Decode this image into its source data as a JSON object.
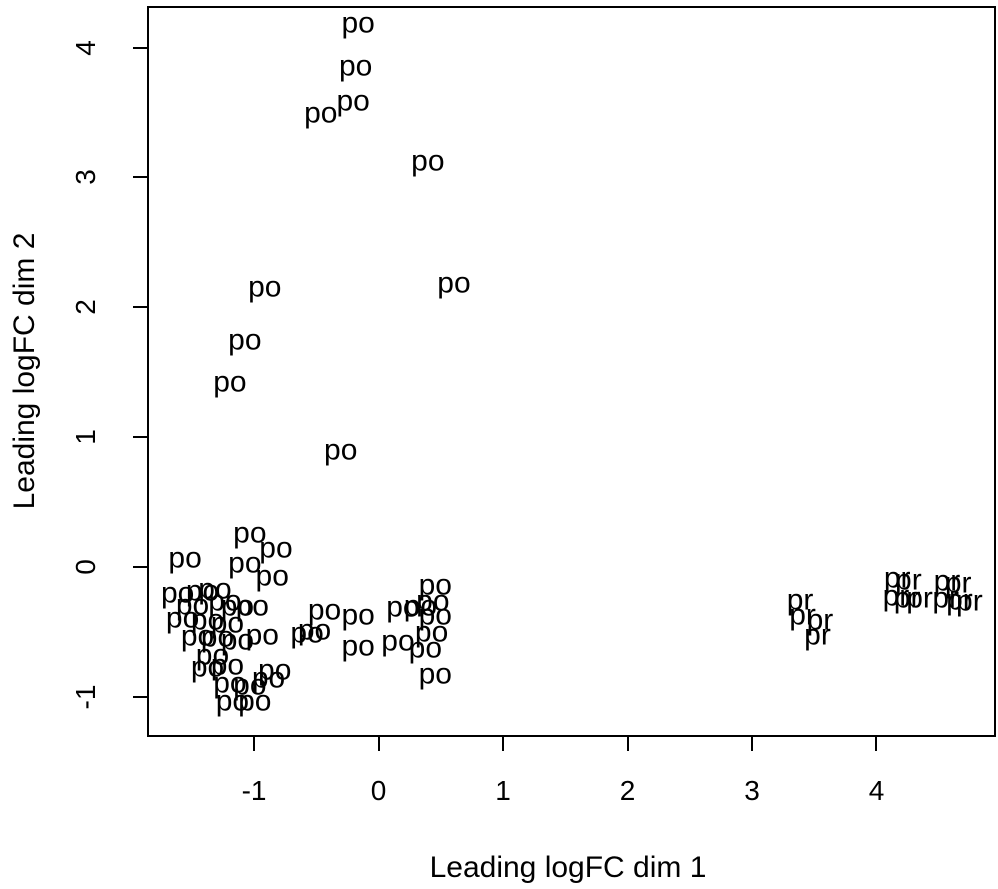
{
  "figure": {
    "background_color": "#ffffff",
    "foreground_color": "#000000"
  },
  "chart_data": {
    "type": "scatter",
    "title": "",
    "xlabel": "Leading logFC dim 1",
    "ylabel": "Leading logFC dim 2",
    "xlim": [
      -1.86,
      4.96
    ],
    "ylim": [
      -1.31,
      4.32
    ],
    "x_ticks": [
      -1,
      0,
      1,
      2,
      3,
      4
    ],
    "y_ticks": [
      -1,
      0,
      1,
      2,
      3,
      4
    ],
    "grid": false,
    "legend": false,
    "point_style": "text-labels",
    "series": [
      {
        "name": "po",
        "label": "po",
        "points": [
          [
            -0.18,
            4.18
          ],
          [
            -0.2,
            3.85
          ],
          [
            -0.22,
            3.58
          ],
          [
            -0.48,
            3.49
          ],
          [
            0.38,
            3.12
          ],
          [
            0.59,
            2.18
          ],
          [
            -0.93,
            2.15
          ],
          [
            -1.09,
            1.74
          ],
          [
            -1.21,
            1.42
          ],
          [
            -0.32,
            0.89
          ],
          [
            -1.05,
            0.25
          ],
          [
            -0.84,
            0.14
          ],
          [
            -1.57,
            0.06
          ],
          [
            -1.09,
            0.02
          ],
          [
            -0.87,
            -0.08
          ],
          [
            -1.63,
            -0.21
          ],
          [
            -1.43,
            -0.19
          ],
          [
            -1.33,
            -0.18
          ],
          [
            -1.51,
            -0.3
          ],
          [
            -1.25,
            -0.27
          ],
          [
            -1.15,
            -0.31
          ],
          [
            -1.03,
            -0.31
          ],
          [
            -1.59,
            -0.4
          ],
          [
            -1.39,
            -0.42
          ],
          [
            -1.23,
            -0.44
          ],
          [
            -1.47,
            -0.54
          ],
          [
            -1.31,
            -0.55
          ],
          [
            -1.15,
            -0.57
          ],
          [
            -1.35,
            -0.69
          ],
          [
            -0.95,
            -0.53
          ],
          [
            -0.59,
            -0.52
          ],
          [
            -1.39,
            -0.78
          ],
          [
            -1.23,
            -0.76
          ],
          [
            -0.85,
            -0.8
          ],
          [
            -1.21,
            -0.9
          ],
          [
            -1.05,
            -0.92
          ],
          [
            -0.9,
            -0.86
          ],
          [
            -1.19,
            -1.04
          ],
          [
            -1.01,
            -1.04
          ],
          [
            0.44,
            -0.15
          ],
          [
            0.42,
            -0.27
          ],
          [
            0.44,
            -0.38
          ],
          [
            0.41,
            -0.51
          ],
          [
            0.36,
            -0.63
          ],
          [
            0.44,
            -0.83
          ],
          [
            0.32,
            -0.31
          ],
          [
            0.18,
            -0.32
          ],
          [
            0.14,
            -0.58
          ],
          [
            -0.18,
            -0.38
          ],
          [
            -0.18,
            -0.62
          ],
          [
            -0.45,
            -0.34
          ],
          [
            -0.53,
            -0.49
          ]
        ]
      },
      {
        "name": "pr",
        "label": "pr",
        "points": [
          [
            3.37,
            -0.26
          ],
          [
            3.39,
            -0.38
          ],
          [
            3.53,
            -0.42
          ],
          [
            3.51,
            -0.53
          ],
          [
            4.15,
            -0.09
          ],
          [
            4.24,
            -0.11
          ],
          [
            4.14,
            -0.23
          ],
          [
            4.23,
            -0.25
          ],
          [
            4.33,
            -0.25
          ],
          [
            4.55,
            -0.12
          ],
          [
            4.64,
            -0.13
          ],
          [
            4.54,
            -0.25
          ],
          [
            4.65,
            -0.26
          ],
          [
            4.73,
            -0.27
          ]
        ]
      }
    ]
  }
}
